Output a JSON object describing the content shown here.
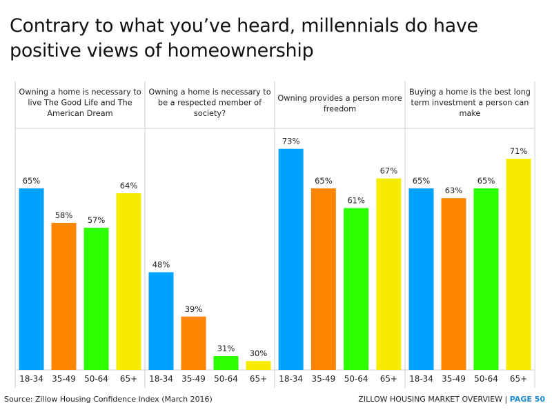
{
  "page": {
    "title": "Contrary to what you’ve heard, millennials do have positive views of homeownership",
    "source": "Source: Zillow Housing Confidence Index (March 2016)",
    "footer_label": "ZILLOW HOUSING MARKET OVERVIEW | ",
    "footer_page": "PAGE 50"
  },
  "colors": {
    "18-34": "#00a2ff",
    "35-49": "#ff8400",
    "50-64": "#2bff00",
    "65+": "#f7ec00",
    "grid": "#dddddd",
    "page_accent": "#1a8bd4"
  },
  "chart_data": {
    "type": "bar",
    "title": "Contrary to what you’ve heard, millennials do have positive views of homeownership",
    "categories": [
      "18-34",
      "35-49",
      "50-64",
      "65+"
    ],
    "value_suffix": "%",
    "panels": [
      {
        "question_lines": [
          "Owning a home is necessary to",
          "live The Good Life and The",
          "American Dream"
        ],
        "values": [
          65,
          58,
          57,
          64
        ]
      },
      {
        "question_lines": [
          "Owning a home is necessary to",
          "be a respected member of",
          "society?"
        ],
        "values": [
          48,
          39,
          31,
          30
        ]
      },
      {
        "question_lines": [
          "Owning provides a person more",
          "freedom"
        ],
        "values": [
          73,
          65,
          61,
          67
        ]
      },
      {
        "question_lines": [
          "Buying a home is the best long",
          "term investment a person can",
          "make"
        ],
        "values": [
          65,
          63,
          65,
          71
        ]
      }
    ],
    "xlabel": "",
    "ylabel": "",
    "grid": false,
    "legend": "none"
  }
}
